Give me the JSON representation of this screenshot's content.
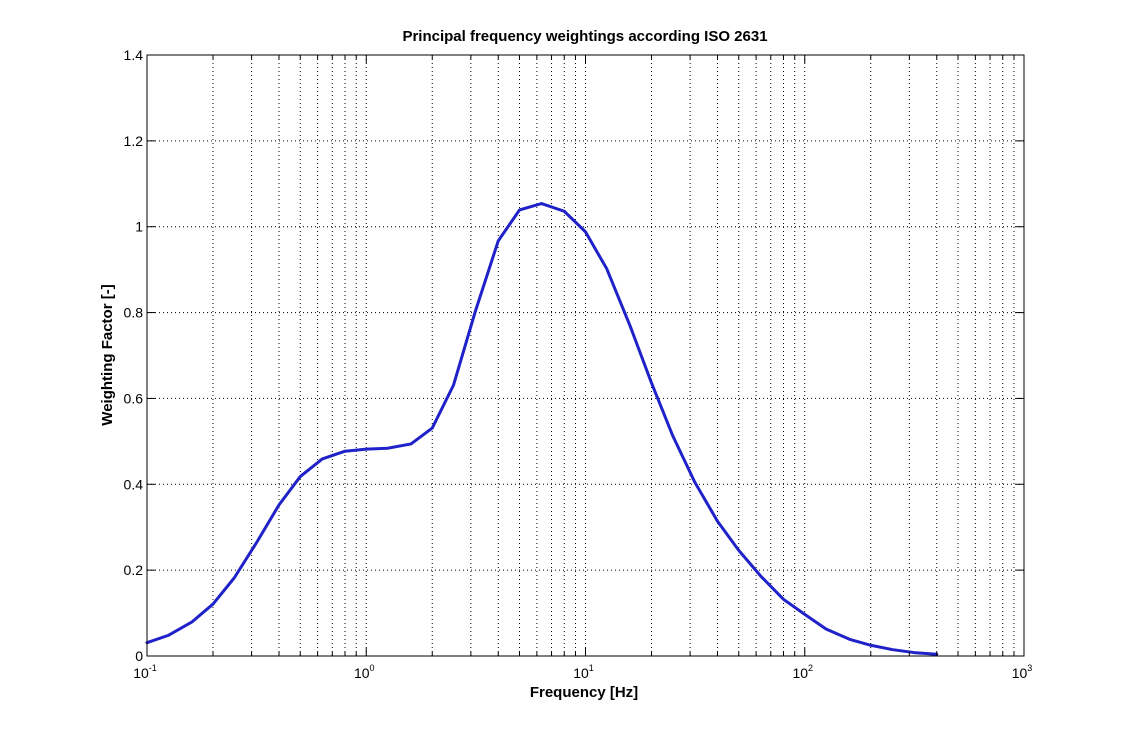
{
  "chart_data": {
    "type": "line",
    "title": "Principal frequency weightings according ISO 2631",
    "xlabel": "Frequency [Hz]",
    "ylabel": "Weighting Factor [-]",
    "xscale": "log",
    "xlim": [
      0.1,
      1000
    ],
    "ylim": [
      0,
      1.4
    ],
    "grid": true,
    "grid_style": "dotted",
    "x_ticks": [
      {
        "base": "10",
        "exp": "-1",
        "value": 0.1
      },
      {
        "base": "10",
        "exp": "0",
        "value": 1
      },
      {
        "base": "10",
        "exp": "1",
        "value": 10
      },
      {
        "base": "10",
        "exp": "2",
        "value": 100
      },
      {
        "base": "10",
        "exp": "3",
        "value": 1000
      }
    ],
    "y_ticks": [
      "0",
      "0.2",
      "0.4",
      "0.6",
      "0.8",
      "1",
      "1.2",
      "1.4"
    ],
    "series": [
      {
        "color": "#1f22c8",
        "x": [
          0.1,
          0.125,
          0.16,
          0.2,
          0.25,
          0.315,
          0.4,
          0.5,
          0.63,
          0.8,
          1.0,
          1.25,
          1.6,
          2.0,
          2.5,
          3.15,
          4.0,
          5.0,
          6.3,
          8.0,
          10,
          12.5,
          16,
          20,
          25,
          31.5,
          40,
          50,
          63,
          80,
          100,
          125,
          160,
          200,
          250,
          315,
          400
        ],
        "y": [
          0.031,
          0.048,
          0.079,
          0.121,
          0.182,
          0.263,
          0.352,
          0.418,
          0.459,
          0.477,
          0.482,
          0.484,
          0.494,
          0.531,
          0.631,
          0.804,
          0.967,
          1.039,
          1.054,
          1.036,
          0.988,
          0.902,
          0.768,
          0.636,
          0.513,
          0.405,
          0.314,
          0.246,
          0.186,
          0.132,
          0.097,
          0.063,
          0.039,
          0.025,
          0.015,
          0.008,
          0.004
        ]
      }
    ]
  }
}
